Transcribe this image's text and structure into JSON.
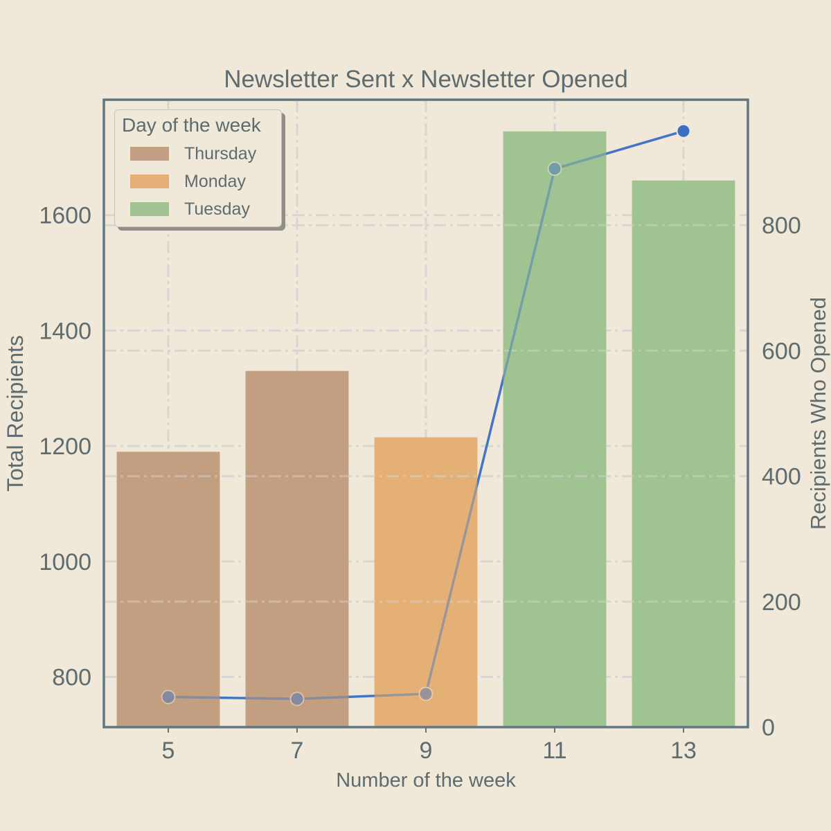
{
  "chart_data": {
    "type": "bar",
    "title": "Newsletter Sent x Newsletter Opened",
    "xlabel": "Number of the week",
    "ylabel": "Total Recipients",
    "y2label": "Recipients Who Opened",
    "categories": [
      "5",
      "7",
      "9",
      "11",
      "13"
    ],
    "bar_series": {
      "name": "Total Recipients",
      "values": [
        1190,
        1330,
        1215,
        1745,
        1660
      ],
      "day": [
        "Thursday",
        "Thursday",
        "Monday",
        "Tuesday",
        "Tuesday"
      ]
    },
    "line_series": {
      "name": "Recipients Who Opened",
      "values": [
        48,
        45,
        53,
        890,
        950
      ]
    },
    "ylim": [
      713,
      1800
    ],
    "y2lim": [
      0,
      1000
    ],
    "yticks": [
      800,
      1000,
      1200,
      1400,
      1600
    ],
    "y2ticks": [
      0,
      200,
      400,
      600,
      800
    ],
    "grid": true,
    "legend": {
      "title": "Day of the week",
      "placement": "top-left",
      "entries": [
        {
          "label": "Thursday",
          "color": "#C29F82"
        },
        {
          "label": "Monday",
          "color": "#E4B077"
        },
        {
          "label": "Tuesday",
          "color": "#A1C392"
        }
      ]
    },
    "colors": {
      "Thursday": "#C29F82",
      "Monday": "#E4B077",
      "Tuesday": "#A1C392",
      "line": "#3A6FC4",
      "axis": "#637780",
      "text": "#5E6B6F",
      "background": "#F0E8D8"
    }
  }
}
